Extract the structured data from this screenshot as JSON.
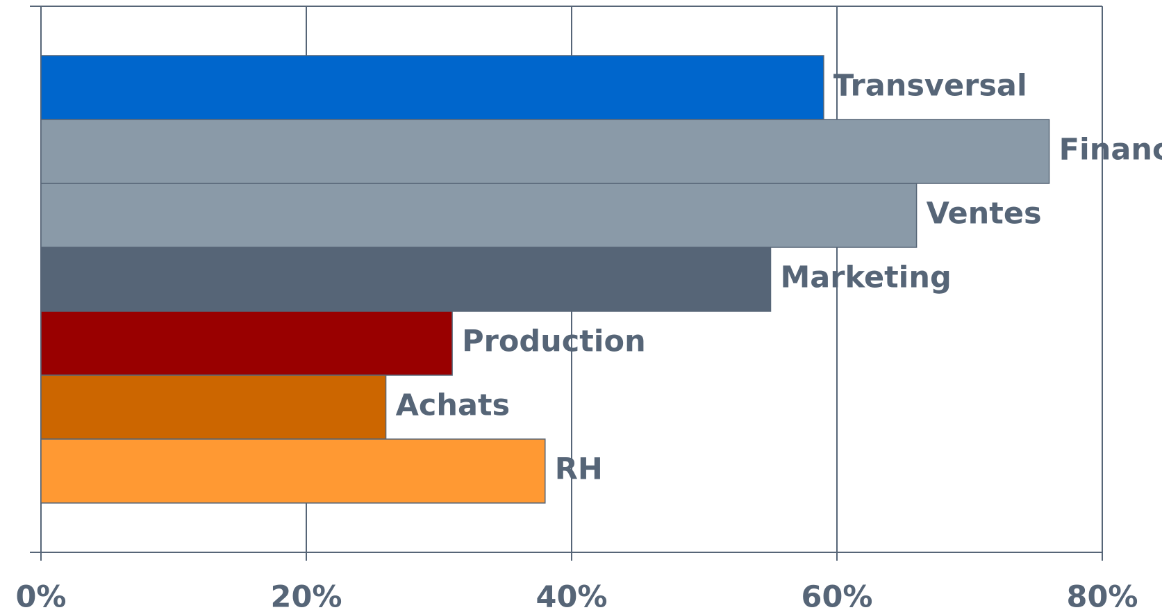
{
  "chart_data": {
    "type": "bar",
    "orientation": "horizontal",
    "categories": [
      "Transversal",
      "Finance",
      "Ventes",
      "Marketing",
      "Production",
      "Achats",
      "RH"
    ],
    "series": [
      {
        "name": null,
        "colors": [
          "#0066cc",
          "#8a9aa8",
          "#8a9aa8",
          "#566577",
          "#990000",
          "#cc6600",
          "#ff9933"
        ],
        "values": [
          59,
          76,
          66,
          55,
          31,
          26,
          38
        ]
      }
    ],
    "xlim": [
      0,
      80
    ],
    "xticks": [
      {
        "value": 0,
        "label": "0%"
      },
      {
        "value": 20,
        "label": "20%"
      },
      {
        "value": 40,
        "label": "40%"
      },
      {
        "value": 60,
        "label": "60%"
      },
      {
        "value": 80,
        "label": "80%"
      }
    ],
    "grid": true
  }
}
